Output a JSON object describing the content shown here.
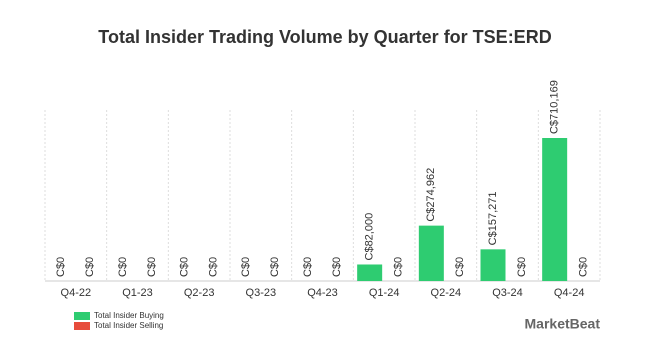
{
  "chart_data": {
    "type": "bar",
    "title": "Total Insider Trading Volume by Quarter for TSE:ERD",
    "categories": [
      "Q4-22",
      "Q1-23",
      "Q2-23",
      "Q3-23",
      "Q4-23",
      "Q1-24",
      "Q2-24",
      "Q3-24",
      "Q4-24"
    ],
    "series": [
      {
        "name": "Total Insider Buying",
        "color": "#2ecc71",
        "values": [
          0,
          0,
          0,
          0,
          0,
          82000,
          274962,
          157271,
          710169
        ],
        "value_labels": [
          "C$0",
          "C$0",
          "C$0",
          "C$0",
          "C$0",
          "C$82,000",
          "C$274,962",
          "C$157,271",
          "C$710,169"
        ]
      },
      {
        "name": "Total Insider Selling",
        "color": "#e74c3c",
        "values": [
          0,
          0,
          0,
          0,
          0,
          0,
          0,
          0,
          0
        ],
        "value_labels": [
          "C$0",
          "C$0",
          "C$0",
          "C$0",
          "C$0",
          "C$0",
          "C$0",
          "C$0",
          "C$0"
        ]
      }
    ],
    "watermark": "MarketBeat"
  }
}
